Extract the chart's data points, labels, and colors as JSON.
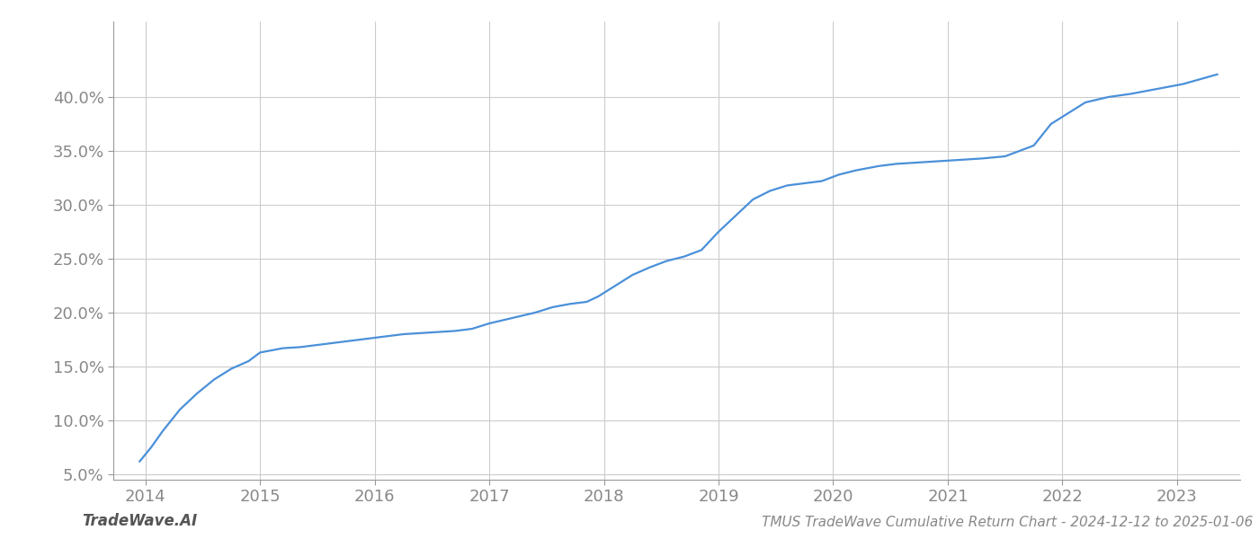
{
  "title": "TMUS TradeWave Cumulative Return Chart - 2024-12-12 to 2025-01-06",
  "watermark": "TradeWave.AI",
  "line_color": "#4a90d9",
  "background_color": "#ffffff",
  "grid_color": "#cccccc",
  "x_years": [
    2014,
    2015,
    2016,
    2017,
    2018,
    2019,
    2020,
    2021,
    2022,
    2023
  ],
  "x_data": [
    2013.95,
    2014.05,
    2014.15,
    2014.3,
    2014.45,
    2014.6,
    2014.75,
    2014.9,
    2015.0,
    2015.1,
    2015.2,
    2015.35,
    2015.5,
    2015.65,
    2015.8,
    2015.95,
    2016.1,
    2016.25,
    2016.4,
    2016.55,
    2016.7,
    2016.85,
    2017.0,
    2017.2,
    2017.4,
    2017.55,
    2017.7,
    2017.85,
    2017.95,
    2018.1,
    2018.25,
    2018.4,
    2018.55,
    2018.7,
    2018.85,
    2019.0,
    2019.15,
    2019.3,
    2019.45,
    2019.6,
    2019.75,
    2019.9,
    2020.05,
    2020.2,
    2020.4,
    2020.55,
    2020.7,
    2020.85,
    2021.0,
    2021.15,
    2021.3,
    2021.5,
    2021.75,
    2021.9,
    2022.05,
    2022.2,
    2022.4,
    2022.6,
    2022.75,
    2022.9,
    2023.05,
    2023.15,
    2023.25,
    2023.35
  ],
  "y_data": [
    6.2,
    7.5,
    9.0,
    11.0,
    12.5,
    13.8,
    14.8,
    15.5,
    16.3,
    16.5,
    16.7,
    16.8,
    17.0,
    17.2,
    17.4,
    17.6,
    17.8,
    18.0,
    18.1,
    18.2,
    18.3,
    18.5,
    19.0,
    19.5,
    20.0,
    20.5,
    20.8,
    21.0,
    21.5,
    22.5,
    23.5,
    24.2,
    24.8,
    25.2,
    25.8,
    27.5,
    29.0,
    30.5,
    31.3,
    31.8,
    32.0,
    32.2,
    32.8,
    33.2,
    33.6,
    33.8,
    33.9,
    34.0,
    34.1,
    34.2,
    34.3,
    34.5,
    35.5,
    37.5,
    38.5,
    39.5,
    40.0,
    40.3,
    40.6,
    40.9,
    41.2,
    41.5,
    41.8,
    42.1
  ],
  "ylim": [
    4.5,
    47.0
  ],
  "xlim": [
    2013.72,
    2023.55
  ],
  "yticks": [
    5.0,
    10.0,
    15.0,
    20.0,
    25.0,
    30.0,
    35.0,
    40.0
  ],
  "title_fontsize": 11,
  "watermark_fontsize": 12,
  "tick_fontsize": 13,
  "line_width": 1.6
}
